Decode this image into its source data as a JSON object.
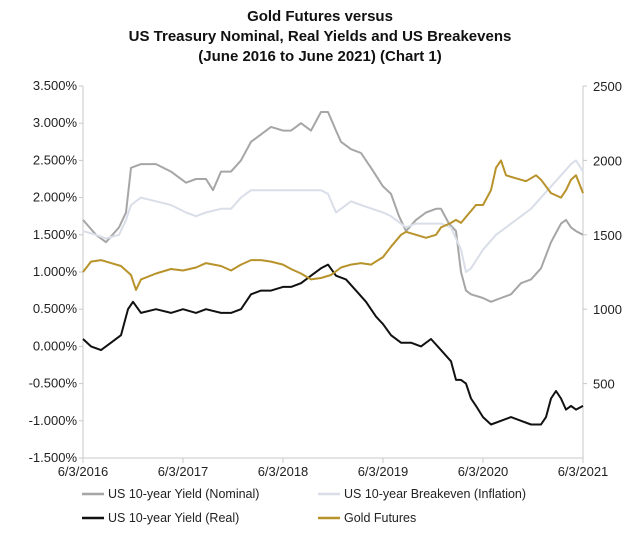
{
  "chart_data": {
    "type": "line",
    "title": [
      "Gold Futures versus",
      "US Treasury Nominal, Real Yields and US Breakevens",
      "(June 2016 to June 2021) (Chart 1)"
    ],
    "x_tick_labels": [
      "6/3/2016",
      "6/3/2017",
      "6/3/2018",
      "6/3/2019",
      "6/3/2020",
      "6/3/2021"
    ],
    "x_tick_years": [
      2016.42,
      2017.42,
      2018.42,
      2019.42,
      2020.42,
      2021.42
    ],
    "xlim": [
      2016.42,
      2021.42
    ],
    "y_left_ticks": [
      "3.500%",
      "3.000%",
      "2.500%",
      "2.000%",
      "1.500%",
      "1.000%",
      "0.500%",
      "0.000%",
      "-0.500%",
      "-1.000%",
      "-1.500%"
    ],
    "y_left_lim": [
      -1.5,
      3.5
    ],
    "y_right_ticks": [
      "2500",
      "2000",
      "1500",
      "1000",
      "500"
    ],
    "y_right_lim": [
      0,
      2500
    ],
    "grid": false,
    "legend_position": "bottom",
    "series": [
      {
        "name": "US 10-year Yield (Nominal)",
        "axis": "left",
        "color": "#a6a6a6",
        "x": [
          2016.42,
          2016.55,
          2016.65,
          2016.78,
          2016.85,
          2016.9,
          2017.0,
          2017.15,
          2017.3,
          2017.45,
          2017.55,
          2017.65,
          2017.72,
          2017.8,
          2017.9,
          2018.0,
          2018.1,
          2018.2,
          2018.3,
          2018.42,
          2018.5,
          2018.6,
          2018.7,
          2018.8,
          2018.87,
          2018.95,
          2019.0,
          2019.1,
          2019.2,
          2019.3,
          2019.42,
          2019.5,
          2019.58,
          2019.65,
          2019.75,
          2019.85,
          2019.95,
          2020.0,
          2020.08,
          2020.15,
          2020.2,
          2020.25,
          2020.3,
          2020.42,
          2020.5,
          2020.6,
          2020.7,
          2020.8,
          2020.9,
          2021.0,
          2021.1,
          2021.2,
          2021.25,
          2021.3,
          2021.35,
          2021.42
        ],
        "y": [
          1.7,
          1.5,
          1.4,
          1.6,
          1.8,
          2.4,
          2.45,
          2.45,
          2.35,
          2.2,
          2.25,
          2.25,
          2.1,
          2.35,
          2.35,
          2.5,
          2.75,
          2.85,
          2.95,
          2.9,
          2.9,
          3.0,
          2.9,
          3.15,
          3.15,
          2.9,
          2.75,
          2.65,
          2.6,
          2.4,
          2.15,
          2.05,
          1.75,
          1.55,
          1.7,
          1.8,
          1.85,
          1.85,
          1.65,
          1.55,
          1.0,
          0.75,
          0.7,
          0.65,
          0.6,
          0.65,
          0.7,
          0.85,
          0.9,
          1.05,
          1.4,
          1.65,
          1.7,
          1.6,
          1.55,
          1.5
        ]
      },
      {
        "name": "US 10-year Breakeven (Inflation)",
        "axis": "left",
        "color": "#d9dee8",
        "x": [
          2016.42,
          2016.55,
          2016.65,
          2016.78,
          2016.85,
          2016.9,
          2017.0,
          2017.15,
          2017.3,
          2017.45,
          2017.55,
          2017.65,
          2017.8,
          2017.9,
          2018.0,
          2018.1,
          2018.2,
          2018.42,
          2018.6,
          2018.8,
          2018.87,
          2018.95,
          2019.0,
          2019.1,
          2019.2,
          2019.42,
          2019.5,
          2019.65,
          2019.75,
          2019.85,
          2020.0,
          2020.1,
          2020.2,
          2020.25,
          2020.3,
          2020.42,
          2020.55,
          2020.65,
          2020.75,
          2020.9,
          2021.0,
          2021.1,
          2021.2,
          2021.3,
          2021.35,
          2021.42
        ],
        "y": [
          1.55,
          1.5,
          1.45,
          1.5,
          1.7,
          1.9,
          2.0,
          1.95,
          1.9,
          1.8,
          1.75,
          1.8,
          1.85,
          1.85,
          2.0,
          2.1,
          2.1,
          2.1,
          2.1,
          2.1,
          2.05,
          1.8,
          1.85,
          1.95,
          1.9,
          1.8,
          1.75,
          1.6,
          1.65,
          1.65,
          1.65,
          1.6,
          1.3,
          1.0,
          1.05,
          1.3,
          1.5,
          1.6,
          1.7,
          1.85,
          2.0,
          2.15,
          2.3,
          2.45,
          2.5,
          2.35
        ]
      },
      {
        "name": "US 10-year Yield (Real)",
        "axis": "left",
        "color": "#111111",
        "x": [
          2016.42,
          2016.5,
          2016.6,
          2016.7,
          2016.8,
          2016.87,
          2016.92,
          2017.0,
          2017.15,
          2017.3,
          2017.42,
          2017.55,
          2017.65,
          2017.8,
          2017.9,
          2018.0,
          2018.1,
          2018.2,
          2018.3,
          2018.42,
          2018.5,
          2018.6,
          2018.7,
          2018.8,
          2018.87,
          2018.95,
          2019.05,
          2019.15,
          2019.25,
          2019.35,
          2019.42,
          2019.5,
          2019.6,
          2019.7,
          2019.8,
          2019.9,
          2020.0,
          2020.1,
          2020.15,
          2020.2,
          2020.25,
          2020.3,
          2020.35,
          2020.42,
          2020.5,
          2020.6,
          2020.7,
          2020.8,
          2020.9,
          2021.0,
          2021.05,
          2021.1,
          2021.15,
          2021.2,
          2021.25,
          2021.3,
          2021.35,
          2021.42
        ],
        "y": [
          0.1,
          0.0,
          -0.05,
          0.05,
          0.15,
          0.5,
          0.6,
          0.45,
          0.5,
          0.45,
          0.5,
          0.45,
          0.5,
          0.45,
          0.45,
          0.5,
          0.7,
          0.75,
          0.75,
          0.8,
          0.8,
          0.85,
          0.95,
          1.05,
          1.1,
          0.95,
          0.9,
          0.75,
          0.6,
          0.4,
          0.3,
          0.15,
          0.05,
          0.05,
          0.0,
          0.1,
          -0.05,
          -0.2,
          -0.45,
          -0.45,
          -0.5,
          -0.7,
          -0.8,
          -0.95,
          -1.05,
          -1.0,
          -0.95,
          -1.0,
          -1.05,
          -1.05,
          -0.95,
          -0.7,
          -0.6,
          -0.7,
          -0.85,
          -0.8,
          -0.85,
          -0.8
        ]
      },
      {
        "name": "Gold Futures",
        "axis": "right",
        "color": "#b8922a",
        "x": [
          2016.42,
          2016.5,
          2016.6,
          2016.7,
          2016.8,
          2016.9,
          2016.95,
          2017.0,
          2017.15,
          2017.3,
          2017.42,
          2017.55,
          2017.65,
          2017.8,
          2017.9,
          2018.0,
          2018.1,
          2018.2,
          2018.3,
          2018.42,
          2018.5,
          2018.6,
          2018.7,
          2018.8,
          2018.9,
          2019.0,
          2019.1,
          2019.2,
          2019.3,
          2019.42,
          2019.5,
          2019.6,
          2019.65,
          2019.75,
          2019.85,
          2019.95,
          2020.0,
          2020.1,
          2020.15,
          2020.2,
          2020.25,
          2020.35,
          2020.42,
          2020.5,
          2020.55,
          2020.6,
          2020.65,
          2020.75,
          2020.85,
          2020.95,
          2021.0,
          2021.1,
          2021.2,
          2021.25,
          2021.3,
          2021.35,
          2021.42
        ],
        "y": [
          1250,
          1320,
          1330,
          1310,
          1290,
          1230,
          1130,
          1200,
          1240,
          1270,
          1260,
          1280,
          1310,
          1290,
          1260,
          1300,
          1330,
          1330,
          1320,
          1300,
          1270,
          1240,
          1200,
          1210,
          1230,
          1280,
          1300,
          1310,
          1300,
          1350,
          1420,
          1500,
          1520,
          1500,
          1480,
          1500,
          1550,
          1580,
          1600,
          1580,
          1620,
          1700,
          1700,
          1800,
          1950,
          2000,
          1900,
          1880,
          1860,
          1900,
          1870,
          1780,
          1750,
          1800,
          1870,
          1900,
          1780
        ]
      }
    ]
  }
}
